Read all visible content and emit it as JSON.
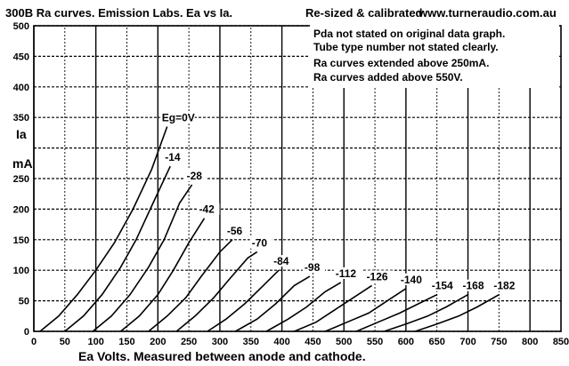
{
  "title": "300B Ra curves. Emission Labs. Ea vs Ia.",
  "subtitle": "Re-sized & calibrated",
  "url": "www.turneraudio.com.au",
  "notes": [
    "Pda not stated on original data graph.",
    "Tube type number not stated clearly.",
    "Ra curves extended above 250mA.",
    "Ra curves added above 550V."
  ],
  "chart_data": {
    "type": "line",
    "xlabel": "Ea Volts. Measured between anode and cathode.",
    "ylabel": "Ia",
    "yunit": "mA",
    "xlim": [
      0,
      850
    ],
    "ylim": [
      0,
      500
    ],
    "x_ticks": [
      "0",
      "50",
      "100",
      "150",
      "200",
      "250",
      "300",
      "350",
      "400",
      "450",
      "500",
      "550",
      "600",
      "650",
      "700",
      "750",
      "800",
      "850"
    ],
    "y_ticks": [
      "0",
      "50",
      "100",
      "150",
      "200",
      "250",
      "300",
      "350",
      "400",
      "450",
      "500"
    ],
    "grid": true,
    "series": [
      {
        "name": "Eg=0V",
        "points": [
          [
            10,
            0
          ],
          [
            40,
            25
          ],
          [
            70,
            60
          ],
          [
            100,
            100
          ],
          [
            130,
            145
          ],
          [
            160,
            200
          ],
          [
            190,
            265
          ],
          [
            215,
            335
          ]
        ]
      },
      {
        "name": "-14",
        "points": [
          [
            50,
            0
          ],
          [
            80,
            25
          ],
          [
            110,
            60
          ],
          [
            140,
            105
          ],
          [
            165,
            150
          ],
          [
            190,
            205
          ],
          [
            220,
            270
          ]
        ]
      },
      {
        "name": "-28",
        "points": [
          [
            95,
            0
          ],
          [
            125,
            25
          ],
          [
            155,
            60
          ],
          [
            185,
            105
          ],
          [
            210,
            150
          ],
          [
            235,
            210
          ],
          [
            255,
            240
          ]
        ]
      },
      {
        "name": "-42",
        "points": [
          [
            140,
            0
          ],
          [
            170,
            25
          ],
          [
            200,
            60
          ],
          [
            225,
            100
          ],
          [
            250,
            145
          ],
          [
            275,
            185
          ]
        ]
      },
      {
        "name": "-56",
        "points": [
          [
            185,
            0
          ],
          [
            215,
            25
          ],
          [
            245,
            55
          ],
          [
            270,
            90
          ],
          [
            300,
            130
          ],
          [
            320,
            150
          ]
        ]
      },
      {
        "name": "-70",
        "points": [
          [
            230,
            0
          ],
          [
            260,
            25
          ],
          [
            290,
            55
          ],
          [
            315,
            85
          ],
          [
            345,
            120
          ],
          [
            360,
            130
          ]
        ]
      },
      {
        "name": "-84",
        "points": [
          [
            280,
            0
          ],
          [
            310,
            20
          ],
          [
            340,
            45
          ],
          [
            370,
            75
          ],
          [
            395,
            100
          ]
        ]
      },
      {
        "name": "-98",
        "points": [
          [
            325,
            0
          ],
          [
            360,
            20
          ],
          [
            390,
            45
          ],
          [
            420,
            75
          ],
          [
            445,
            90
          ]
        ]
      },
      {
        "name": "-112",
        "points": [
          [
            375,
            0
          ],
          [
            410,
            20
          ],
          [
            440,
            40
          ],
          [
            470,
            65
          ],
          [
            495,
            80
          ]
        ]
      },
      {
        "name": "-126",
        "points": [
          [
            420,
            0
          ],
          [
            455,
            15
          ],
          [
            485,
            35
          ],
          [
            515,
            55
          ],
          [
            545,
            75
          ]
        ]
      },
      {
        "name": "-140",
        "points": [
          [
            470,
            0
          ],
          [
            505,
            15
          ],
          [
            540,
            30
          ],
          [
            570,
            50
          ],
          [
            600,
            70
          ]
        ]
      },
      {
        "name": "-154",
        "points": [
          [
            520,
            0
          ],
          [
            555,
            15
          ],
          [
            590,
            30
          ],
          [
            620,
            45
          ],
          [
            650,
            60
          ]
        ]
      },
      {
        "name": "-168",
        "points": [
          [
            565,
            0
          ],
          [
            600,
            12
          ],
          [
            635,
            25
          ],
          [
            665,
            40
          ],
          [
            700,
            60
          ]
        ]
      },
      {
        "name": "-182",
        "points": [
          [
            615,
            0
          ],
          [
            650,
            12
          ],
          [
            685,
            25
          ],
          [
            715,
            40
          ],
          [
            750,
            60
          ]
        ]
      }
    ]
  }
}
